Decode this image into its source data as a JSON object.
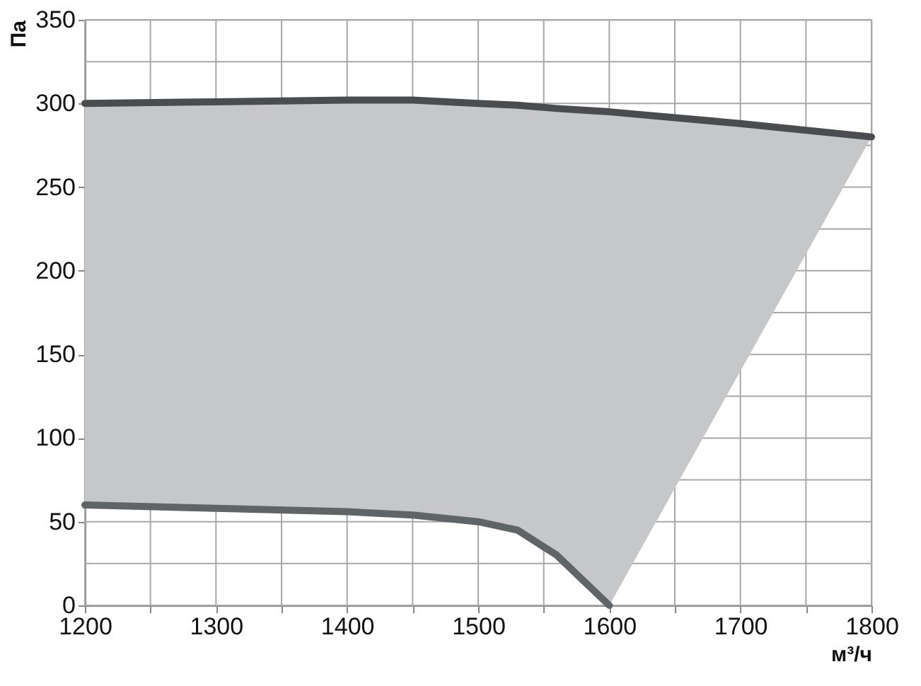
{
  "chart_data": {
    "type": "line",
    "xlabel": "м³/ч",
    "ylabel": "Па",
    "xlim": [
      1200,
      1800
    ],
    "ylim": [
      0,
      350
    ],
    "xticks": [
      1200,
      {
        "value": 1250,
        "label": null
      },
      1300,
      {
        "value": 1350,
        "label": null
      },
      1400,
      {
        "value": 1450,
        "label": null
      },
      1500,
      {
        "value": 1550,
        "label": null
      },
      1600,
      {
        "value": 1650,
        "label": null
      },
      1700,
      {
        "value": 1750,
        "label": null
      },
      1800
    ],
    "yticks": [
      0,
      {
        "value": 25,
        "label": null
      },
      50,
      {
        "value": 75,
        "label": null
      },
      100,
      {
        "value": 125,
        "label": null
      },
      150,
      {
        "value": 175,
        "label": null
      },
      200,
      {
        "value": 225,
        "label": null
      },
      250,
      {
        "value": 275,
        "label": null
      },
      300,
      {
        "value": 325,
        "label": null
      },
      350
    ],
    "grid": true,
    "line_style": "solid",
    "marker": "none",
    "series": [
      {
        "color": "#4a4d50",
        "x": [
          1200,
          1300,
          1400,
          1450,
          1500,
          1530,
          1560,
          1580,
          1600,
          1700,
          1800
        ],
        "values": [
          300,
          301,
          302,
          302,
          300,
          299,
          297,
          296,
          295,
          288,
          280
        ],
        "lower": [
          60,
          58,
          56,
          54,
          50,
          45,
          30,
          15,
          0,
          140,
          280
        ],
        "upper": [
          300,
          301,
          302,
          302,
          300,
          299,
          297,
          296,
          295,
          288,
          280
        ]
      },
      {
        "color": "#5f6466",
        "x": [
          1200,
          1300,
          1400,
          1450,
          1500,
          1530,
          1560,
          1580,
          1600
        ],
        "values": [
          60,
          58,
          56,
          54,
          50,
          45,
          30,
          15,
          0
        ]
      }
    ]
  }
}
